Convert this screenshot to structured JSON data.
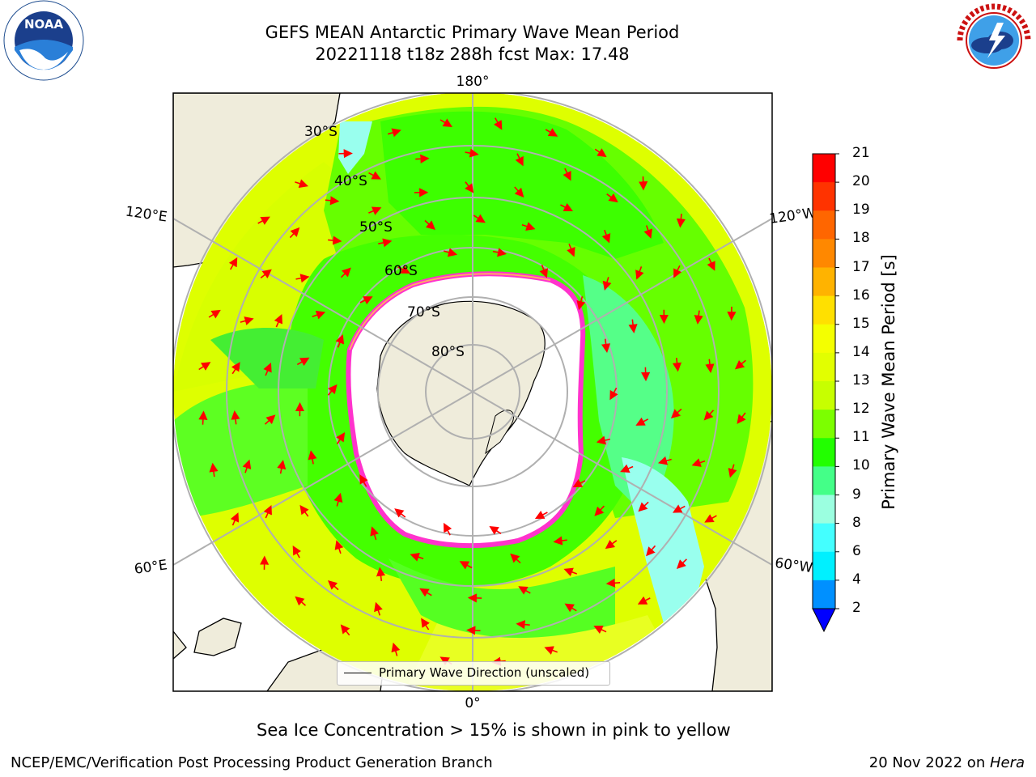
{
  "header": {
    "title_line1": "GEFS MEAN Antarctic Primary Wave Mean Period",
    "title_line2": "20221118 t18z 288h fcst   Max: 17.48"
  },
  "logos": {
    "left": "NOAA",
    "left_ring": "NATIONAL OCEANIC AND ATMOSPHERIC ADMINISTRATION · U.S. DEPARTMENT OF COMMERCE",
    "right_ring": "NATIONAL WEATHER SERVICE"
  },
  "map": {
    "projection": "south polar stereographic",
    "longitude_labels": [
      "180°",
      "120°E",
      "120°W",
      "60°E",
      "60°W",
      "0°"
    ],
    "latitude_labels": [
      "30°S",
      "40°S",
      "50°S",
      "60°S",
      "70°S",
      "80°S"
    ],
    "legend_label": "Primary Wave Direction (unscaled)",
    "arrow_color": "#ff0000"
  },
  "colorbar": {
    "label": "Primary Wave Mean Period [s]",
    "ticks": [
      "21",
      "20",
      "19",
      "18",
      "17",
      "16",
      "15",
      "14",
      "13",
      "12",
      "11",
      "10",
      "9",
      "8",
      "6",
      "4",
      "2"
    ],
    "colors": [
      "#ff0000",
      "#ff3300",
      "#ff6600",
      "#ff8800",
      "#ffb300",
      "#ffe000",
      "#f4ff00",
      "#e2ff00",
      "#c7ff00",
      "#7cff00",
      "#22ff00",
      "#44ff88",
      "#9bffe0",
      "#44ffff",
      "#00f0ff",
      "#0090ff"
    ],
    "extend_color": "#0000ff"
  },
  "caption": "Sea Ice Concentration > 15% is shown in pink to yellow",
  "footer": {
    "left": "NCEP/EMC/Verification Post Processing Product Generation Branch",
    "right_prefix": "20 Nov 2022 on ",
    "right_machine": "Hera"
  }
}
